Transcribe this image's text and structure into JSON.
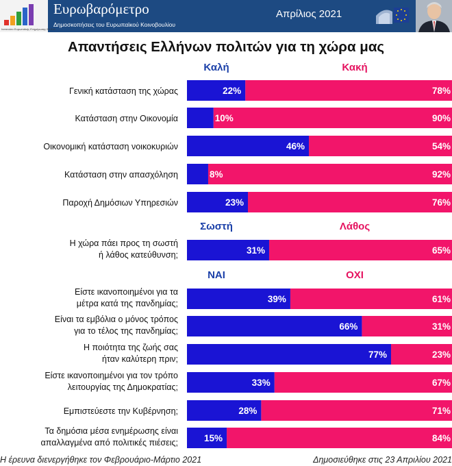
{
  "header": {
    "title": "Ευρωβαρόμετρο",
    "subtitle": "Δημοσκοπήσεις του Ευρωπαϊκού Κοινοβουλίου",
    "date": "Απρίλιος 2021",
    "logo_caption": "Ινστιτούτο Ευρωπαϊκής Ενημέρωσης Ε.Ι.Ε.Ε.",
    "colors": {
      "header_bg": "#1d4a82"
    }
  },
  "chart_data": {
    "type": "bar",
    "stacked": true,
    "orientation": "horizontal",
    "title": "Απαντήσεις Ελλήνων πολιτών για τη χώρα μας",
    "colors": {
      "positive": "#1a14d4",
      "negative": "#f2156a",
      "header_positive": "#1a3fa8",
      "header_negative": "#e5125f"
    },
    "groups": [
      {
        "labels": [
          "Καλή",
          "Κακή"
        ],
        "rows": [
          {
            "question": [
              "Γενική κατάσταση της χώρας"
            ],
            "positive": 22,
            "negative": 78,
            "positive_label": "22%",
            "negative_label": "78%"
          },
          {
            "question": [
              "Κατάσταση στην Οικονομία"
            ],
            "positive": 10,
            "negative": 90,
            "positive_label": "10%",
            "negative_label": "90%"
          },
          {
            "question": [
              "Οικονομική κατάσταση νοικοκυριών"
            ],
            "positive": 46,
            "negative": 54,
            "positive_label": "46%",
            "negative_label": "54%"
          },
          {
            "question": [
              "Κατάσταση στην απασχόληση"
            ],
            "positive": 8,
            "negative": 92,
            "positive_label": "8%",
            "negative_label": "92%"
          },
          {
            "question": [
              "Παροχή Δημόσιων Υπηρεσιών"
            ],
            "positive": 23,
            "negative": 76,
            "positive_label": "23%",
            "negative_label": "76%"
          }
        ]
      },
      {
        "labels": [
          "Σωστή",
          "Λάθος"
        ],
        "rows": [
          {
            "question": [
              "Η χώρα πάει προς τη σωστή",
              "ή λάθος κατεύθυνση;"
            ],
            "positive": 31,
            "negative": 65,
            "positive_label": "31%",
            "negative_label": "65%"
          }
        ]
      },
      {
        "labels": [
          "ΝΑΙ",
          "ΟΧΙ"
        ],
        "rows": [
          {
            "question": [
              "Είστε ικανοποιημένοι για τα",
              "μέτρα κατά της πανδημίας;"
            ],
            "positive": 39,
            "negative": 61,
            "positive_label": "39%",
            "negative_label": "61%"
          },
          {
            "question": [
              "Είναι τα εμβόλια ο μόνος τρόπος",
              "για το τέλος της πανδημίας;"
            ],
            "positive": 66,
            "negative": 31,
            "positive_label": "66%",
            "negative_label": "31%"
          },
          {
            "question": [
              "Η ποιότητα της ζωής σας",
              "ήταν καλύτερη πριν;"
            ],
            "positive": 77,
            "negative": 23,
            "positive_label": "77%",
            "negative_label": "23%"
          },
          {
            "question": [
              "Είστε ικανοποιημένοι για τον τρόπο",
              "λειτουργίας της Δημοκρατίας;"
            ],
            "positive": 33,
            "negative": 67,
            "positive_label": "33%",
            "negative_label": "67%"
          },
          {
            "question": [
              "Εμπιστεύεστε την Κυβέρνηση;"
            ],
            "positive": 28,
            "negative": 71,
            "positive_label": "28%",
            "negative_label": "71%"
          },
          {
            "question": [
              "Τα δημόσια μέσα ενημέρωσης είναι",
              "απαλλαγμένα από πολιτικές πιέσεις;"
            ],
            "positive": 15,
            "negative": 84,
            "positive_label": "15%",
            "negative_label": "84%"
          }
        ]
      }
    ]
  },
  "footer": {
    "left": "Η έρευνα διενεργήθηκε τον Φεβρουάριο-Μάρτιο 2021",
    "right": "Δημοσιεύθηκε στις 23 Απριλίου 2021"
  }
}
